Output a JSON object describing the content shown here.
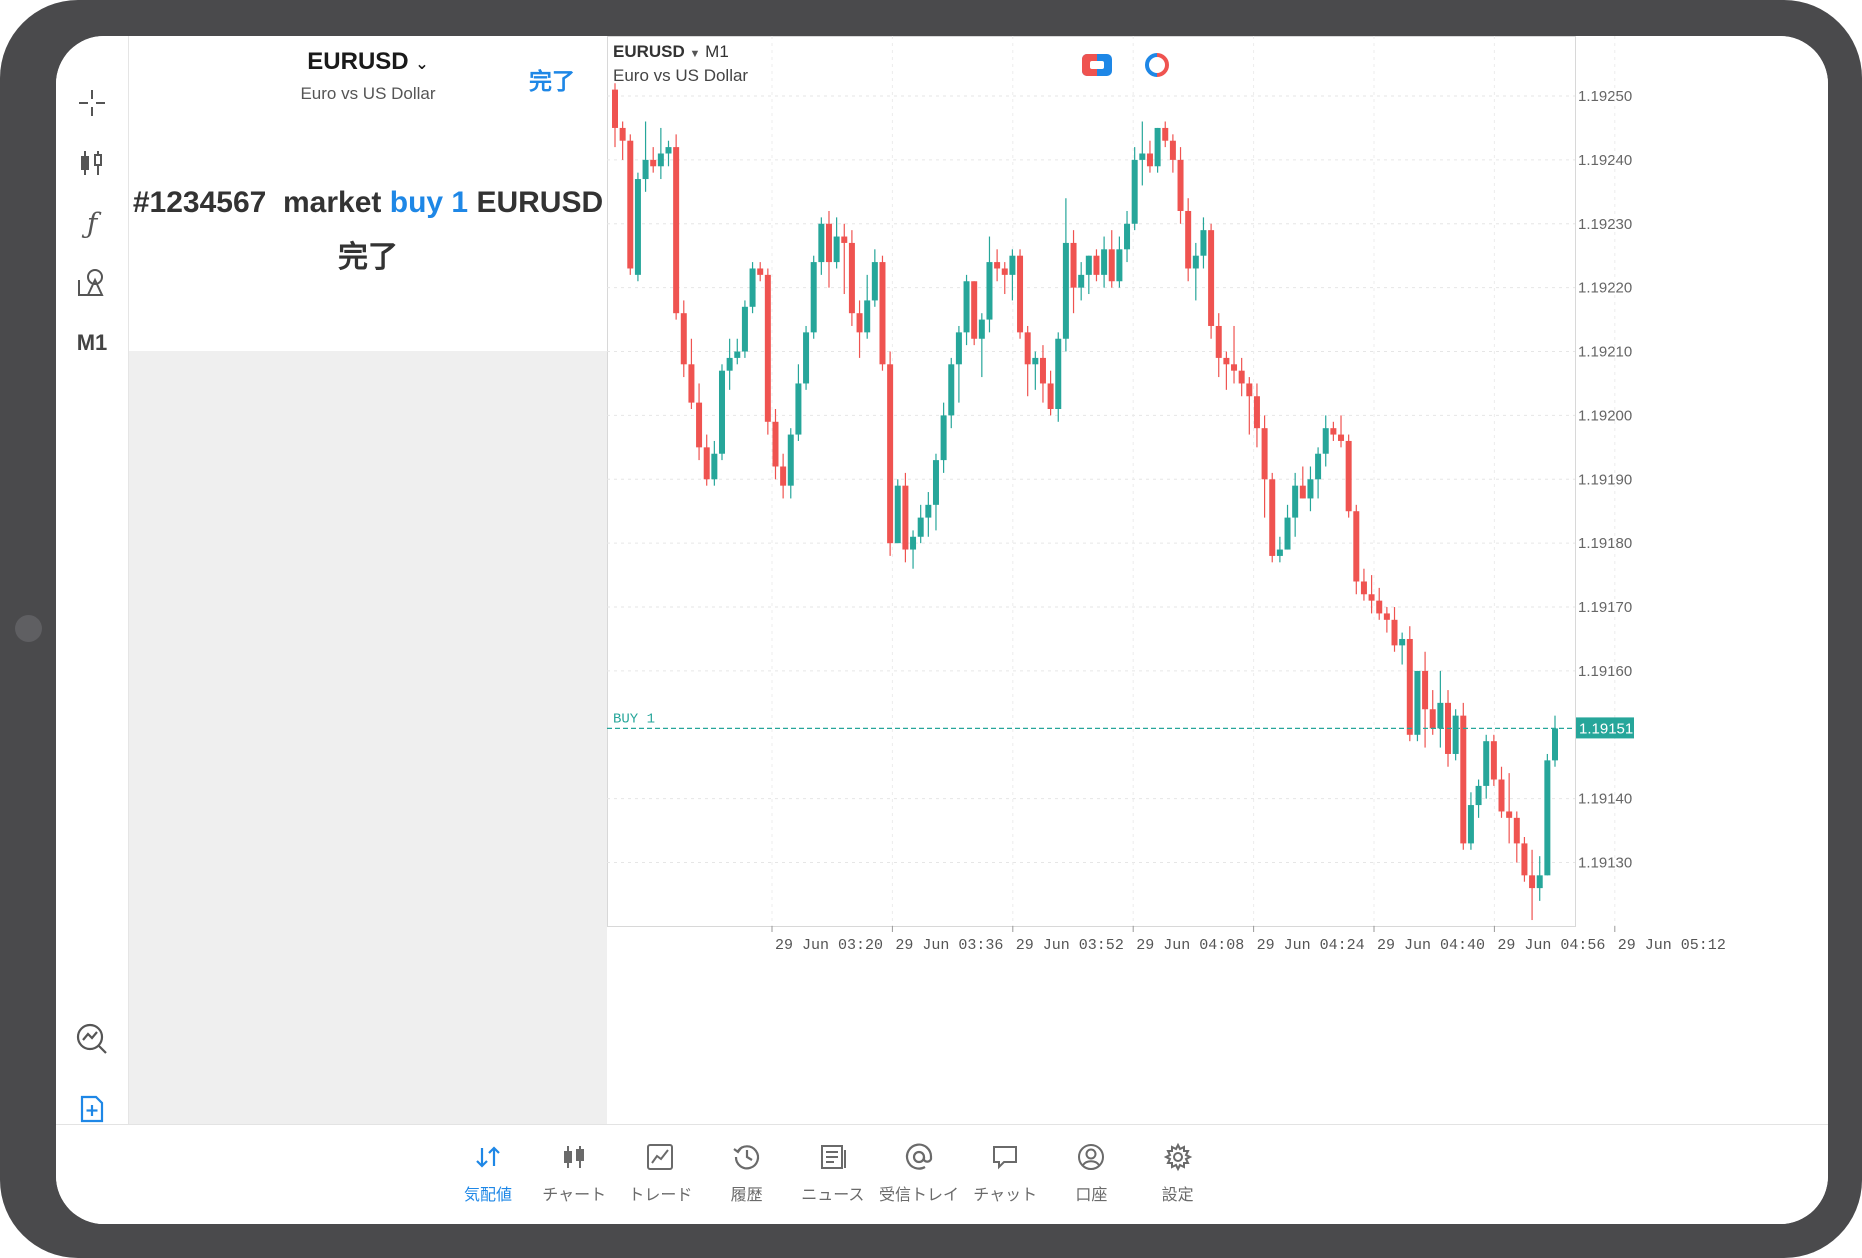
{
  "left_panel": {
    "symbol": "EURUSD",
    "symbol_desc": "Euro vs US Dollar",
    "done_button": "完了",
    "order_number": "#1234567",
    "order_type": "market",
    "order_side_volume": "buy 1",
    "order_symbol": "EURUSD",
    "order_status": "完了"
  },
  "toolbar": {
    "timeframe": "M1",
    "icons": [
      "crosshair-icon",
      "candlestick-icon",
      "function-icon",
      "shapes-icon",
      "analytics-icon",
      "add-order-icon"
    ]
  },
  "chart": {
    "symbol": "EURUSD",
    "timeframe": "M1",
    "description": "Euro vs US Dollar",
    "position_label": "BUY 1",
    "current_price_label": "1.19151",
    "colors": {
      "up": "#26a69a",
      "down": "#ef5350",
      "line": "#26a69a",
      "accent": "#1e87e6"
    }
  },
  "chart_data": {
    "type": "candlestick",
    "symbol": "EURUSD",
    "timeframe": "M1",
    "y_ticks": [
      "1.19250",
      "1.19240",
      "1.19230",
      "1.19220",
      "1.19210",
      "1.19200",
      "1.19190",
      "1.19180",
      "1.19170",
      "1.19160",
      "1.19140",
      "1.19130"
    ],
    "ylim": [
      1.1912,
      1.19255
    ],
    "x_ticks": [
      "29 Jun 03:20",
      "29 Jun 03:36",
      "29 Jun 03:52",
      "29 Jun 04:08",
      "29 Jun 04:24",
      "29 Jun 04:40",
      "29 Jun 04:56",
      "29 Jun 05:12"
    ],
    "buy_line": 1.19151,
    "candles": [
      [
        1.19251,
        1.19252,
        1.19242,
        1.19245
      ],
      [
        1.19245,
        1.19246,
        1.1924,
        1.19243
      ],
      [
        1.19243,
        1.19244,
        1.19222,
        1.19223
      ],
      [
        1.19222,
        1.19238,
        1.19221,
        1.19237
      ],
      [
        1.19237,
        1.19246,
        1.19235,
        1.1924
      ],
      [
        1.1924,
        1.19242,
        1.19238,
        1.19239
      ],
      [
        1.19239,
        1.19245,
        1.19237,
        1.19241
      ],
      [
        1.19241,
        1.19243,
        1.19239,
        1.19242
      ],
      [
        1.19242,
        1.19244,
        1.19215,
        1.19216
      ],
      [
        1.19216,
        1.19218,
        1.19206,
        1.19208
      ],
      [
        1.19208,
        1.19212,
        1.19201,
        1.19202
      ],
      [
        1.19202,
        1.19205,
        1.19193,
        1.19195
      ],
      [
        1.19195,
        1.19197,
        1.19189,
        1.1919
      ],
      [
        1.1919,
        1.19196,
        1.19189,
        1.19194
      ],
      [
        1.19194,
        1.19208,
        1.19193,
        1.19207
      ],
      [
        1.19207,
        1.19212,
        1.19204,
        1.19209
      ],
      [
        1.19209,
        1.19212,
        1.19208,
        1.1921
      ],
      [
        1.1921,
        1.19218,
        1.19209,
        1.19217
      ],
      [
        1.19217,
        1.19224,
        1.19216,
        1.19223
      ],
      [
        1.19223,
        1.19224,
        1.19221,
        1.19222
      ],
      [
        1.19222,
        1.19223,
        1.19197,
        1.19199
      ],
      [
        1.19199,
        1.19201,
        1.1919,
        1.19192
      ],
      [
        1.19192,
        1.19194,
        1.19187,
        1.19189
      ],
      [
        1.19189,
        1.19198,
        1.19187,
        1.19197
      ],
      [
        1.19197,
        1.19208,
        1.19196,
        1.19205
      ],
      [
        1.19205,
        1.19214,
        1.19204,
        1.19213
      ],
      [
        1.19213,
        1.19225,
        1.19212,
        1.19224
      ],
      [
        1.19224,
        1.19231,
        1.19222,
        1.1923
      ],
      [
        1.1923,
        1.19232,
        1.1922,
        1.19224
      ],
      [
        1.19224,
        1.19231,
        1.19223,
        1.19228
      ],
      [
        1.19228,
        1.1923,
        1.19219,
        1.19227
      ],
      [
        1.19227,
        1.19229,
        1.19214,
        1.19216
      ],
      [
        1.19216,
        1.19218,
        1.19209,
        1.19213
      ],
      [
        1.19213,
        1.19222,
        1.19212,
        1.19218
      ],
      [
        1.19218,
        1.19226,
        1.19217,
        1.19224
      ],
      [
        1.19224,
        1.19225,
        1.19207,
        1.19208
      ],
      [
        1.19208,
        1.1921,
        1.19178,
        1.1918
      ],
      [
        1.1918,
        1.1919,
        1.1918,
        1.19189
      ],
      [
        1.19189,
        1.19191,
        1.19177,
        1.19179
      ],
      [
        1.19179,
        1.19182,
        1.19176,
        1.19181
      ],
      [
        1.19181,
        1.19186,
        1.1918,
        1.19184
      ],
      [
        1.19184,
        1.19188,
        1.19181,
        1.19186
      ],
      [
        1.19186,
        1.19194,
        1.19182,
        1.19193
      ],
      [
        1.19193,
        1.19202,
        1.19191,
        1.192
      ],
      [
        1.192,
        1.19209,
        1.19198,
        1.19208
      ],
      [
        1.19208,
        1.19214,
        1.19202,
        1.19213
      ],
      [
        1.19213,
        1.19222,
        1.19211,
        1.19221
      ],
      [
        1.19221,
        1.19221,
        1.19211,
        1.19212
      ],
      [
        1.19212,
        1.19216,
        1.19206,
        1.19215
      ],
      [
        1.19215,
        1.19228,
        1.19213,
        1.19224
      ],
      [
        1.19224,
        1.19226,
        1.19221,
        1.19223
      ],
      [
        1.19223,
        1.19224,
        1.19219,
        1.19222
      ],
      [
        1.19222,
        1.19226,
        1.19218,
        1.19225
      ],
      [
        1.19225,
        1.19226,
        1.19212,
        1.19213
      ],
      [
        1.19213,
        1.19214,
        1.19203,
        1.19208
      ],
      [
        1.19208,
        1.1921,
        1.19204,
        1.19209
      ],
      [
        1.19209,
        1.19211,
        1.19202,
        1.19205
      ],
      [
        1.19205,
        1.19207,
        1.192,
        1.19201
      ],
      [
        1.19201,
        1.19213,
        1.19199,
        1.19212
      ],
      [
        1.19212,
        1.19234,
        1.1921,
        1.19227
      ],
      [
        1.19227,
        1.19229,
        1.19216,
        1.1922
      ],
      [
        1.1922,
        1.19224,
        1.19218,
        1.19222
      ],
      [
        1.19222,
        1.19225,
        1.19219,
        1.19225
      ],
      [
        1.19225,
        1.19226,
        1.19221,
        1.19222
      ],
      [
        1.19222,
        1.19228,
        1.1922,
        1.19226
      ],
      [
        1.19226,
        1.19229,
        1.1922,
        1.19221
      ],
      [
        1.19221,
        1.19228,
        1.1922,
        1.19226
      ],
      [
        1.19226,
        1.19232,
        1.19224,
        1.1923
      ],
      [
        1.1923,
        1.19242,
        1.19229,
        1.1924
      ],
      [
        1.1924,
        1.19246,
        1.19236,
        1.19241
      ],
      [
        1.19241,
        1.19243,
        1.19238,
        1.19239
      ],
      [
        1.19239,
        1.19245,
        1.19238,
        1.19245
      ],
      [
        1.19245,
        1.19246,
        1.19242,
        1.19243
      ],
      [
        1.19243,
        1.19244,
        1.19238,
        1.1924
      ],
      [
        1.1924,
        1.19242,
        1.1923,
        1.19232
      ],
      [
        1.19232,
        1.19234,
        1.19221,
        1.19223
      ],
      [
        1.19223,
        1.19227,
        1.19218,
        1.19225
      ],
      [
        1.19225,
        1.19231,
        1.19223,
        1.19229
      ],
      [
        1.19229,
        1.1923,
        1.19212,
        1.19214
      ],
      [
        1.19214,
        1.19216,
        1.19206,
        1.19209
      ],
      [
        1.19209,
        1.1921,
        1.19204,
        1.19208
      ],
      [
        1.19208,
        1.19214,
        1.19205,
        1.19207
      ],
      [
        1.19207,
        1.19209,
        1.19203,
        1.19205
      ],
      [
        1.19205,
        1.19206,
        1.19197,
        1.19203
      ],
      [
        1.19203,
        1.19205,
        1.19195,
        1.19198
      ],
      [
        1.19198,
        1.192,
        1.19184,
        1.1919
      ],
      [
        1.1919,
        1.19191,
        1.19177,
        1.19178
      ],
      [
        1.19178,
        1.19181,
        1.19177,
        1.19179
      ],
      [
        1.19179,
        1.19186,
        1.19179,
        1.19184
      ],
      [
        1.19184,
        1.19191,
        1.19181,
        1.19189
      ],
      [
        1.19189,
        1.19192,
        1.19187,
        1.19187
      ],
      [
        1.19187,
        1.19192,
        1.19185,
        1.1919
      ],
      [
        1.1919,
        1.19195,
        1.19187,
        1.19194
      ],
      [
        1.19194,
        1.192,
        1.19192,
        1.19198
      ],
      [
        1.19198,
        1.19199,
        1.19196,
        1.19197
      ],
      [
        1.19197,
        1.192,
        1.19195,
        1.19196
      ],
      [
        1.19196,
        1.19197,
        1.19184,
        1.19185
      ],
      [
        1.19185,
        1.19186,
        1.19172,
        1.19174
      ],
      [
        1.19174,
        1.19176,
        1.19171,
        1.19172
      ],
      [
        1.19172,
        1.19175,
        1.19169,
        1.19171
      ],
      [
        1.19171,
        1.19173,
        1.19168,
        1.19169
      ],
      [
        1.19169,
        1.1917,
        1.19166,
        1.19168
      ],
      [
        1.19168,
        1.1917,
        1.19163,
        1.19164
      ],
      [
        1.19164,
        1.19166,
        1.19161,
        1.19165
      ],
      [
        1.19165,
        1.19167,
        1.19149,
        1.1915
      ],
      [
        1.1915,
        1.1916,
        1.19149,
        1.1916
      ],
      [
        1.1916,
        1.19163,
        1.19148,
        1.19154
      ],
      [
        1.19154,
        1.19157,
        1.1915,
        1.19151
      ],
      [
        1.19151,
        1.1916,
        1.19148,
        1.19155
      ],
      [
        1.19155,
        1.19157,
        1.19145,
        1.19147
      ],
      [
        1.19147,
        1.19154,
        1.19146,
        1.19153
      ],
      [
        1.19153,
        1.19155,
        1.19132,
        1.19133
      ],
      [
        1.19133,
        1.19141,
        1.19132,
        1.19139
      ],
      [
        1.19139,
        1.19143,
        1.19137,
        1.19142
      ],
      [
        1.19142,
        1.1915,
        1.1914,
        1.19149
      ],
      [
        1.19149,
        1.1915,
        1.19142,
        1.19143
      ],
      [
        1.19143,
        1.19145,
        1.19137,
        1.19138
      ],
      [
        1.19138,
        1.19144,
        1.19133,
        1.19137
      ],
      [
        1.19137,
        1.19138,
        1.1913,
        1.19133
      ],
      [
        1.19133,
        1.19134,
        1.19127,
        1.19128
      ],
      [
        1.19128,
        1.19132,
        1.19121,
        1.19126
      ],
      [
        1.19126,
        1.19131,
        1.19124,
        1.19128
      ],
      [
        1.19128,
        1.19147,
        1.19128,
        1.19146
      ],
      [
        1.19146,
        1.19153,
        1.19145,
        1.19151
      ]
    ]
  },
  "bottom_nav": [
    {
      "label": "気配値",
      "icon": "quotes-icon",
      "active": true
    },
    {
      "label": "チャート",
      "icon": "chart-icon",
      "active": false
    },
    {
      "label": "トレード",
      "icon": "trade-icon",
      "active": false
    },
    {
      "label": "履歴",
      "icon": "history-icon",
      "active": false
    },
    {
      "label": "ニュース",
      "icon": "news-icon",
      "active": false
    },
    {
      "label": "受信トレイ",
      "icon": "mailbox-icon",
      "active": false
    },
    {
      "label": "チャット",
      "icon": "chat-icon",
      "active": false
    },
    {
      "label": "口座",
      "icon": "account-icon",
      "active": false
    },
    {
      "label": "設定",
      "icon": "settings-icon",
      "active": false
    }
  ]
}
